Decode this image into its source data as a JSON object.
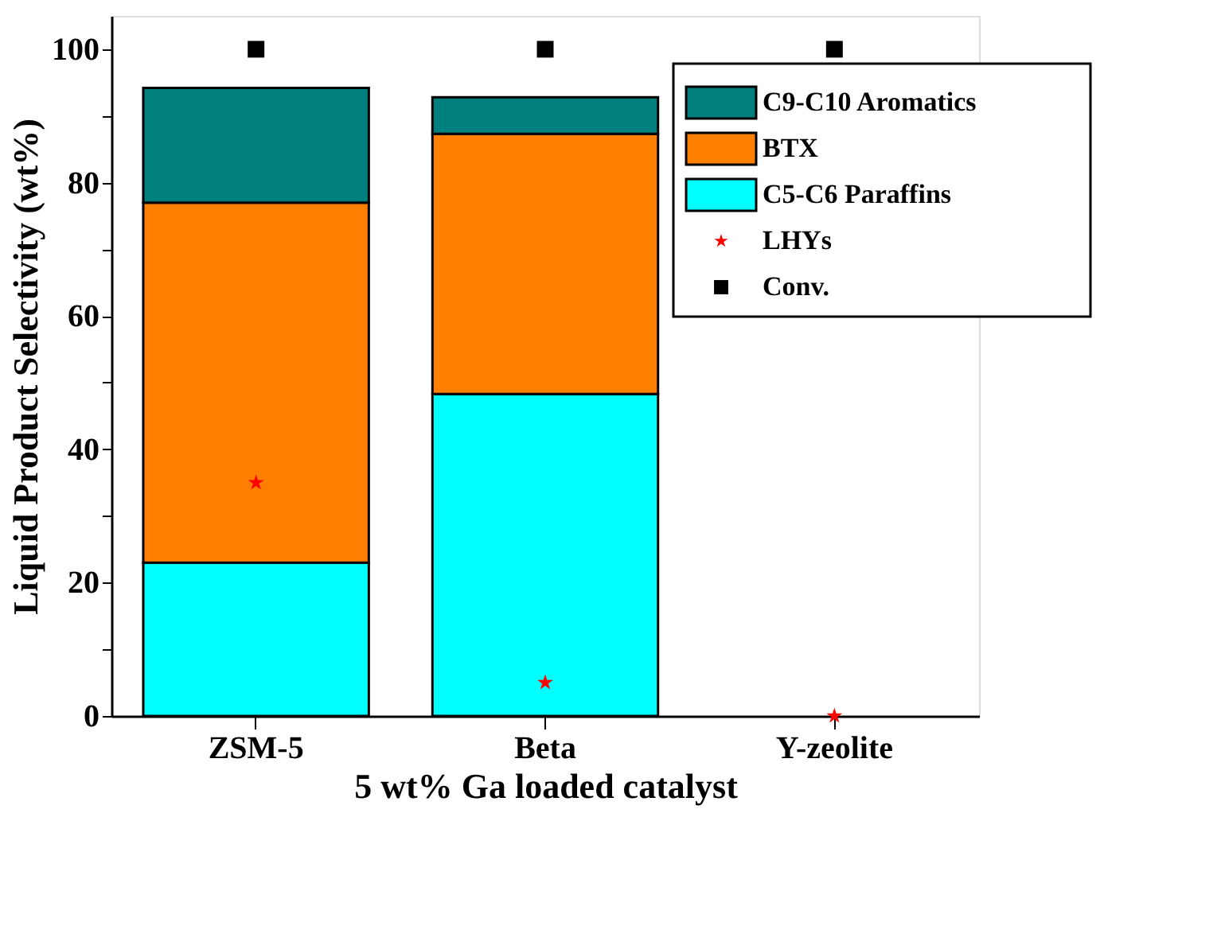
{
  "chart_data": {
    "type": "bar",
    "stacked": true,
    "xlabel": "5 wt% Ga loaded catalyst",
    "ylabel": "Liquid Product Selectivity (wt%)",
    "categories": [
      "ZSM-5",
      "Beta",
      "Y-zeolite"
    ],
    "series": [
      {
        "name": "C5-C6 Paraffins",
        "color": "#00ffff",
        "values": [
          23,
          48.3,
          null
        ]
      },
      {
        "name": "BTX",
        "color": "#ff7f00",
        "values": [
          54,
          39,
          null
        ]
      },
      {
        "name": "C9-C10 Aromatics",
        "color": "#007f7f",
        "values": [
          17.2,
          5.5,
          null
        ]
      },
      {
        "name": "LHYs",
        "type": "scatter",
        "marker": "star",
        "color": "#ff0000",
        "values": [
          35,
          5,
          0
        ]
      },
      {
        "name": "Conv.",
        "type": "scatter",
        "marker": "square",
        "color": "#000000",
        "values": [
          100,
          100,
          100
        ]
      }
    ],
    "ylim": [
      0,
      105
    ],
    "yticks": [
      0,
      {
        "value": 10,
        "label": null
      },
      20,
      {
        "value": 30,
        "label": null
      },
      40,
      {
        "value": 50,
        "label": null
      },
      60,
      {
        "value": 70,
        "label": null
      },
      80,
      {
        "value": 90,
        "label": null
      },
      100
    ],
    "grid": false,
    "legend": "top right"
  }
}
